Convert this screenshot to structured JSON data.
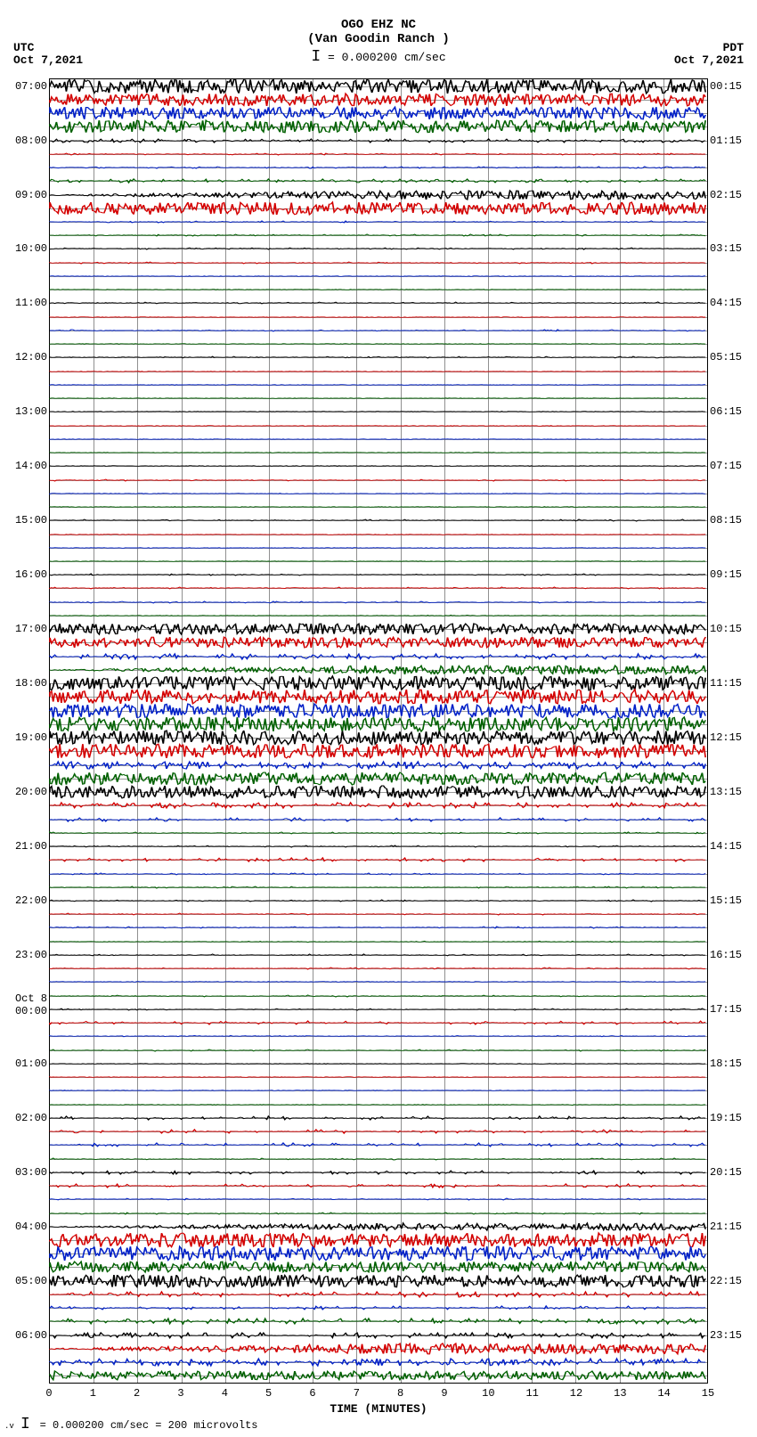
{
  "header": {
    "station": "OGO EHZ NC",
    "location": "(Van Goodin Ranch )",
    "scale_note": "= 0.000200 cm/sec"
  },
  "tz_left": "UTC",
  "date_left": "Oct 7,2021",
  "tz_right": "PDT",
  "date_right": "Oct 7,2021",
  "xaxis": {
    "title": "TIME (MINUTES)",
    "min": 0,
    "max": 15,
    "ticks": [
      0,
      1,
      2,
      3,
      4,
      5,
      6,
      7,
      8,
      9,
      10,
      11,
      12,
      13,
      14,
      15
    ]
  },
  "footer": "= 0.000200 cm/sec =   200 microvolts",
  "colors": {
    "black": "#000000",
    "red": "#d40000",
    "blue": "#0020c8",
    "green": "#006000",
    "grid": "#909090",
    "guide": "#707070"
  },
  "plot": {
    "totalLines": 96,
    "linesPerHour": 4,
    "lineColorCycle": [
      "black",
      "red",
      "blue",
      "green"
    ],
    "hours_left": [
      {
        "line": 0,
        "label": "07:00"
      },
      {
        "line": 4,
        "label": "08:00"
      },
      {
        "line": 8,
        "label": "09:00"
      },
      {
        "line": 12,
        "label": "10:00"
      },
      {
        "line": 16,
        "label": "11:00"
      },
      {
        "line": 20,
        "label": "12:00"
      },
      {
        "line": 24,
        "label": "13:00"
      },
      {
        "line": 28,
        "label": "14:00"
      },
      {
        "line": 32,
        "label": "15:00"
      },
      {
        "line": 36,
        "label": "16:00"
      },
      {
        "line": 40,
        "label": "17:00"
      },
      {
        "line": 44,
        "label": "18:00"
      },
      {
        "line": 48,
        "label": "19:00"
      },
      {
        "line": 52,
        "label": "20:00"
      },
      {
        "line": 56,
        "label": "21:00"
      },
      {
        "line": 60,
        "label": "22:00"
      },
      {
        "line": 64,
        "label": "23:00"
      },
      {
        "line": 68,
        "label": "Oct 8\n00:00"
      },
      {
        "line": 72,
        "label": "01:00"
      },
      {
        "line": 76,
        "label": "02:00"
      },
      {
        "line": 80,
        "label": "03:00"
      },
      {
        "line": 84,
        "label": "04:00"
      },
      {
        "line": 88,
        "label": "05:00"
      },
      {
        "line": 92,
        "label": "06:00"
      }
    ],
    "hours_right": [
      {
        "line": 0,
        "label": "00:15"
      },
      {
        "line": 4,
        "label": "01:15"
      },
      {
        "line": 8,
        "label": "02:15"
      },
      {
        "line": 12,
        "label": "03:15"
      },
      {
        "line": 16,
        "label": "04:15"
      },
      {
        "line": 20,
        "label": "05:15"
      },
      {
        "line": 24,
        "label": "06:15"
      },
      {
        "line": 28,
        "label": "07:15"
      },
      {
        "line": 32,
        "label": "08:15"
      },
      {
        "line": 36,
        "label": "09:15"
      },
      {
        "line": 40,
        "label": "10:15"
      },
      {
        "line": 44,
        "label": "11:15"
      },
      {
        "line": 48,
        "label": "12:15"
      },
      {
        "line": 52,
        "label": "13:15"
      },
      {
        "line": 56,
        "label": "14:15"
      },
      {
        "line": 60,
        "label": "15:15"
      },
      {
        "line": 64,
        "label": "16:15"
      },
      {
        "line": 68,
        "label": "17:15"
      },
      {
        "line": 72,
        "label": "18:15"
      },
      {
        "line": 76,
        "label": "19:15"
      },
      {
        "line": 80,
        "label": "20:15"
      },
      {
        "line": 84,
        "label": "21:15"
      },
      {
        "line": 88,
        "label": "22:15"
      },
      {
        "line": 92,
        "label": "23:15"
      }
    ],
    "traces": [
      {
        "line": 0,
        "amp": 8,
        "density": 1.0,
        "pattern": "noise"
      },
      {
        "line": 1,
        "amp": 7,
        "density": 1.0,
        "pattern": "noise"
      },
      {
        "line": 2,
        "amp": 7,
        "density": 1.0,
        "pattern": "noise"
      },
      {
        "line": 3,
        "amp": 7,
        "density": 1.0,
        "pattern": "noise"
      },
      {
        "line": 4,
        "amp": 2,
        "density": 0.3,
        "pattern": "flat"
      },
      {
        "line": 5,
        "amp": 1,
        "density": 0.2,
        "pattern": "flat"
      },
      {
        "line": 6,
        "amp": 1,
        "density": 0.2,
        "pattern": "flat"
      },
      {
        "line": 7,
        "amp": 2,
        "density": 0.3,
        "pattern": "flat"
      },
      {
        "line": 8,
        "amp": 5,
        "density": 0.8,
        "pattern": "rampup"
      },
      {
        "line": 9,
        "amp": 7,
        "density": 1.0,
        "pattern": "noise"
      },
      {
        "line": 10,
        "amp": 1,
        "density": 0.2,
        "pattern": "flat"
      },
      {
        "line": 11,
        "amp": 1,
        "density": 0.2,
        "pattern": "flat"
      },
      {
        "line": 12,
        "amp": 1,
        "density": 0.2,
        "pattern": "flat"
      },
      {
        "line": 13,
        "amp": 1,
        "density": 0.1,
        "pattern": "flat"
      },
      {
        "line": 14,
        "amp": 0,
        "density": 0.0,
        "pattern": "flat"
      },
      {
        "line": 15,
        "amp": 0,
        "density": 0.0,
        "pattern": "flat"
      },
      {
        "line": 16,
        "amp": 1,
        "density": 0.1,
        "pattern": "flat"
      },
      {
        "line": 17,
        "amp": 0,
        "density": 0.0,
        "pattern": "flat"
      },
      {
        "line": 18,
        "amp": 1,
        "density": 0.1,
        "pattern": "flat"
      },
      {
        "line": 19,
        "amp": 0,
        "density": 0.0,
        "pattern": "flat"
      },
      {
        "line": 20,
        "amp": 1,
        "density": 0.1,
        "pattern": "flat"
      },
      {
        "line": 21,
        "amp": 0,
        "density": 0.0,
        "pattern": "flat"
      },
      {
        "line": 22,
        "amp": 0,
        "density": 0.0,
        "pattern": "flat"
      },
      {
        "line": 23,
        "amp": 0,
        "density": 0.0,
        "pattern": "flat"
      },
      {
        "line": 24,
        "amp": 0,
        "density": 0.0,
        "pattern": "flat"
      },
      {
        "line": 25,
        "amp": 0,
        "density": 0.0,
        "pattern": "flat"
      },
      {
        "line": 26,
        "amp": 0,
        "density": 0.0,
        "pattern": "flat"
      },
      {
        "line": 27,
        "amp": 0,
        "density": 0.0,
        "pattern": "flat"
      },
      {
        "line": 28,
        "amp": 0,
        "density": 0.0,
        "pattern": "flat"
      },
      {
        "line": 29,
        "amp": 1,
        "density": 0.05,
        "pattern": "flat"
      },
      {
        "line": 30,
        "amp": 0,
        "density": 0.0,
        "pattern": "flat"
      },
      {
        "line": 31,
        "amp": 0,
        "density": 0.0,
        "pattern": "flat"
      },
      {
        "line": 32,
        "amp": 1,
        "density": 0.1,
        "pattern": "flat"
      },
      {
        "line": 33,
        "amp": 0,
        "density": 0.0,
        "pattern": "flat"
      },
      {
        "line": 34,
        "amp": 5,
        "density": 0.02,
        "pattern": "burst",
        "burst_at": 0.03
      },
      {
        "line": 35,
        "amp": 0,
        "density": 0.0,
        "pattern": "flat"
      },
      {
        "line": 36,
        "amp": 1,
        "density": 0.1,
        "pattern": "flat"
      },
      {
        "line": 37,
        "amp": 1,
        "density": 0.1,
        "pattern": "flat"
      },
      {
        "line": 38,
        "amp": 1,
        "density": 0.1,
        "pattern": "flat"
      },
      {
        "line": 39,
        "amp": 5,
        "density": 0.03,
        "pattern": "burst",
        "burst_at": 0.31
      },
      {
        "line": 40,
        "amp": 6,
        "density": 0.8,
        "pattern": "noise"
      },
      {
        "line": 41,
        "amp": 6,
        "density": 0.8,
        "pattern": "noise"
      },
      {
        "line": 42,
        "amp": 3,
        "density": 0.4,
        "pattern": "flat"
      },
      {
        "line": 43,
        "amp": 5,
        "density": 0.7,
        "pattern": "rampup"
      },
      {
        "line": 44,
        "amp": 8,
        "density": 1.0,
        "pattern": "noise"
      },
      {
        "line": 45,
        "amp": 8,
        "density": 1.0,
        "pattern": "noise"
      },
      {
        "line": 46,
        "amp": 8,
        "density": 1.0,
        "pattern": "noise"
      },
      {
        "line": 47,
        "amp": 8,
        "density": 1.0,
        "pattern": "noise"
      },
      {
        "line": 48,
        "amp": 8,
        "density": 1.0,
        "pattern": "noise"
      },
      {
        "line": 49,
        "amp": 8,
        "density": 1.0,
        "pattern": "noise"
      },
      {
        "line": 50,
        "amp": 4,
        "density": 0.5,
        "pattern": "flat"
      },
      {
        "line": 51,
        "amp": 7,
        "density": 0.9,
        "pattern": "noise"
      },
      {
        "line": 52,
        "amp": 7,
        "density": 0.9,
        "pattern": "noise"
      },
      {
        "line": 53,
        "amp": 3,
        "density": 0.4,
        "pattern": "flat"
      },
      {
        "line": 54,
        "amp": 2,
        "density": 0.2,
        "pattern": "flat"
      },
      {
        "line": 55,
        "amp": 1,
        "density": 0.1,
        "pattern": "flat"
      },
      {
        "line": 56,
        "amp": 1,
        "density": 0.1,
        "pattern": "flat"
      },
      {
        "line": 57,
        "amp": 2,
        "density": 0.2,
        "pattern": "flat"
      },
      {
        "line": 58,
        "amp": 1,
        "density": 0.1,
        "pattern": "flat"
      },
      {
        "line": 59,
        "amp": 1,
        "density": 0.1,
        "pattern": "flat"
      },
      {
        "line": 60,
        "amp": 1,
        "density": 0.1,
        "pattern": "flat"
      },
      {
        "line": 61,
        "amp": 1,
        "density": 0.05,
        "pattern": "flat"
      },
      {
        "line": 62,
        "amp": 1,
        "density": 0.1,
        "pattern": "flat"
      },
      {
        "line": 63,
        "amp": 5,
        "density": 0.03,
        "pattern": "burst",
        "burst_at": 0.04
      },
      {
        "line": 64,
        "amp": 1,
        "density": 0.1,
        "pattern": "flat"
      },
      {
        "line": 65,
        "amp": 1,
        "density": 0.1,
        "pattern": "flat"
      },
      {
        "line": 66,
        "amp": 0,
        "density": 0.0,
        "pattern": "flat"
      },
      {
        "line": 67,
        "amp": 1,
        "density": 0.1,
        "pattern": "flat"
      },
      {
        "line": 68,
        "amp": 1,
        "density": 0.1,
        "pattern": "flat"
      },
      {
        "line": 69,
        "amp": 2,
        "density": 0.15,
        "pattern": "flat"
      },
      {
        "line": 70,
        "amp": 5,
        "density": 0.1,
        "pattern": "burst",
        "burst_at": 0.06
      },
      {
        "line": 71,
        "amp": 1,
        "density": 0.1,
        "pattern": "flat"
      },
      {
        "line": 72,
        "amp": 0,
        "density": 0.0,
        "pattern": "flat"
      },
      {
        "line": 73,
        "amp": 0,
        "density": 0.0,
        "pattern": "flat"
      },
      {
        "line": 74,
        "amp": 0,
        "density": 0.0,
        "pattern": "flat"
      },
      {
        "line": 75,
        "amp": 4,
        "density": 0.03,
        "pattern": "burst",
        "burst_at": 0.3
      },
      {
        "line": 76,
        "amp": 2,
        "density": 0.2,
        "pattern": "flat"
      },
      {
        "line": 77,
        "amp": 2,
        "density": 0.2,
        "pattern": "flat"
      },
      {
        "line": 78,
        "amp": 2,
        "density": 0.2,
        "pattern": "flat"
      },
      {
        "line": 79,
        "amp": 1,
        "density": 0.1,
        "pattern": "flat"
      },
      {
        "line": 80,
        "amp": 2,
        "density": 0.2,
        "pattern": "flat"
      },
      {
        "line": 81,
        "amp": 2,
        "density": 0.2,
        "pattern": "flat"
      },
      {
        "line": 82,
        "amp": 1,
        "density": 0.1,
        "pattern": "flat"
      },
      {
        "line": 83,
        "amp": 1,
        "density": 0.1,
        "pattern": "flat"
      },
      {
        "line": 84,
        "amp": 4,
        "density": 0.5,
        "pattern": "rampup"
      },
      {
        "line": 85,
        "amp": 8,
        "density": 1.0,
        "pattern": "noise"
      },
      {
        "line": 86,
        "amp": 8,
        "density": 1.0,
        "pattern": "noise"
      },
      {
        "line": 87,
        "amp": 6,
        "density": 0.8,
        "pattern": "noise"
      },
      {
        "line": 88,
        "amp": 7,
        "density": 0.9,
        "pattern": "noise"
      },
      {
        "line": 89,
        "amp": 3,
        "density": 0.3,
        "pattern": "flat"
      },
      {
        "line": 90,
        "amp": 2,
        "density": 0.2,
        "pattern": "flat"
      },
      {
        "line": 91,
        "amp": 3,
        "density": 0.3,
        "pattern": "flat"
      },
      {
        "line": 92,
        "amp": 3,
        "density": 0.3,
        "pattern": "flat"
      },
      {
        "line": 93,
        "amp": 6,
        "density": 0.7,
        "pattern": "rampup"
      },
      {
        "line": 94,
        "amp": 4,
        "density": 0.5,
        "pattern": "flat"
      },
      {
        "line": 95,
        "amp": 5,
        "density": 0.6,
        "pattern": "noise"
      }
    ]
  }
}
